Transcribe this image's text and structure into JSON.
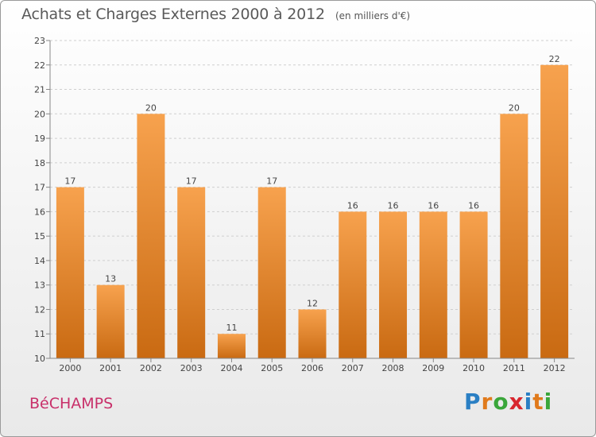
{
  "header": {
    "title": "Achats et Charges Externes 2000 à 2012",
    "subtitle": "(en milliers d'€)"
  },
  "footer": {
    "commune": "BéCHAMPS",
    "logo_letters": [
      "P",
      "r",
      "o",
      "x",
      "i",
      "t",
      "i"
    ],
    "logo_colors": [
      "#2a7fc4",
      "#e07a1c",
      "#3aa63a",
      "#d8262e",
      "#2a7fc4",
      "#e07a1c",
      "#3aa63a"
    ]
  },
  "chart_data": {
    "type": "bar",
    "categories": [
      "2000",
      "2001",
      "2002",
      "2003",
      "2004",
      "2005",
      "2006",
      "2007",
      "2008",
      "2009",
      "2010",
      "2011",
      "2012"
    ],
    "values": [
      17,
      13,
      20,
      17,
      11,
      17,
      12,
      16,
      16,
      16,
      16,
      20,
      22
    ],
    "data_labels": [
      "17",
      "13",
      "20",
      "17",
      "11",
      "17",
      "12",
      "16",
      "16",
      "16",
      "16",
      "20",
      "22"
    ],
    "y_ticks": [
      10,
      11,
      12,
      13,
      14,
      15,
      16,
      17,
      18,
      19,
      20,
      21,
      22,
      23
    ],
    "ylim": [
      10,
      23
    ],
    "grid": "horizontal dashed",
    "colors": {
      "bar_light": "#f7a24e",
      "bar_dark": "#c96a12",
      "axis": "#888888",
      "grid": "#cfcfcf"
    }
  }
}
